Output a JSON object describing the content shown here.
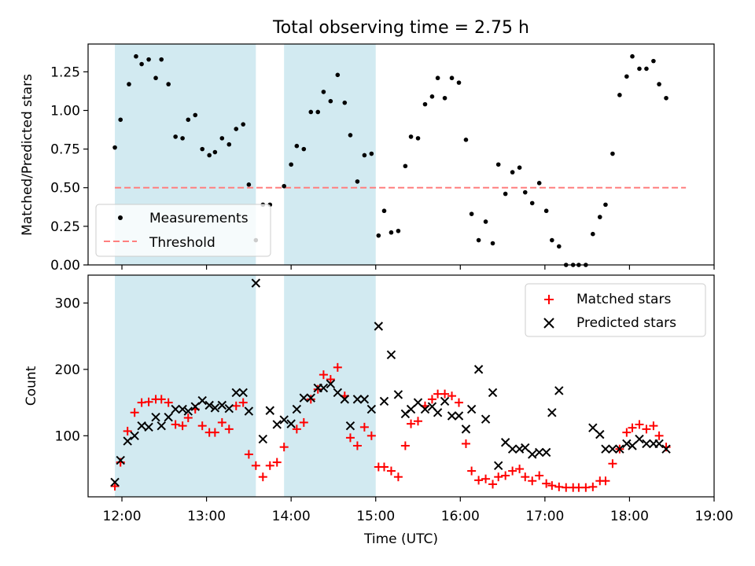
{
  "figure": {
    "title": "Total observing time = 2.75 h",
    "xlabel": "Time (UTC)",
    "x_ticks": [
      "12:00",
      "13:00",
      "14:00",
      "15:00",
      "16:00",
      "17:00",
      "18:00",
      "19:00"
    ]
  },
  "colors": {
    "shade": "#add8e6",
    "measurement": "#000000",
    "threshold": "#ff7f7f",
    "matched": "#ff0000",
    "predicted": "#000000"
  },
  "chart_data": [
    {
      "type": "scatter",
      "name": "ratio-panel",
      "ylabel": "Matched/Predicted stars",
      "xlim": [
        "11:36",
        "19:00"
      ],
      "ylim": [
        0,
        1.43
      ],
      "y_ticks": [
        "0.00",
        "0.25",
        "0.50",
        "0.75",
        "1.00",
        "1.25"
      ],
      "shaded_intervals": [
        [
          "11:55",
          "13:35"
        ],
        [
          "13:55",
          "15:00"
        ]
      ],
      "legend": {
        "placement": "lower-left",
        "entries": [
          "Measurements",
          "Threshold"
        ]
      },
      "threshold": {
        "name": "Threshold",
        "y": 0.5,
        "x_start": "11:55",
        "x_end": "18:40"
      },
      "series": [
        {
          "name": "Measurements",
          "points": [
            [
              "11:55",
              0.76
            ],
            [
              "11:59",
              0.94
            ],
            [
              "12:05",
              1.17
            ],
            [
              "12:10",
              1.35
            ],
            [
              "12:14",
              1.3
            ],
            [
              "12:19",
              1.33
            ],
            [
              "12:24",
              1.21
            ],
            [
              "12:28",
              1.33
            ],
            [
              "12:33",
              1.17
            ],
            [
              "12:38",
              0.83
            ],
            [
              "12:43",
              0.82
            ],
            [
              "12:47",
              0.94
            ],
            [
              "12:52",
              0.97
            ],
            [
              "12:57",
              0.75
            ],
            [
              "13:02",
              0.71
            ],
            [
              "13:06",
              0.73
            ],
            [
              "13:11",
              0.82
            ],
            [
              "13:16",
              0.78
            ],
            [
              "13:21",
              0.88
            ],
            [
              "13:26",
              0.91
            ],
            [
              "13:30",
              0.52
            ],
            [
              "13:35",
              0.16
            ],
            [
              "13:40",
              0.39
            ],
            [
              "13:45",
              0.39
            ],
            [
              "13:55",
              0.51
            ],
            [
              "14:00",
              0.65
            ],
            [
              "14:04",
              0.77
            ],
            [
              "14:09",
              0.75
            ],
            [
              "14:14",
              0.99
            ],
            [
              "14:19",
              0.99
            ],
            [
              "14:23",
              1.12
            ],
            [
              "14:28",
              1.06
            ],
            [
              "14:33",
              1.23
            ],
            [
              "14:38",
              1.05
            ],
            [
              "14:42",
              0.84
            ],
            [
              "14:47",
              0.54
            ],
            [
              "14:52",
              0.71
            ],
            [
              "14:57",
              0.72
            ],
            [
              "15:02",
              0.19
            ],
            [
              "15:06",
              0.35
            ],
            [
              "15:11",
              0.21
            ],
            [
              "15:16",
              0.22
            ],
            [
              "15:21",
              0.64
            ],
            [
              "15:25",
              0.83
            ],
            [
              "15:30",
              0.82
            ],
            [
              "15:35",
              1.04
            ],
            [
              "15:40",
              1.09
            ],
            [
              "15:44",
              1.21
            ],
            [
              "15:49",
              1.08
            ],
            [
              "15:54",
              1.21
            ],
            [
              "15:59",
              1.18
            ],
            [
              "16:04",
              0.81
            ],
            [
              "16:08",
              0.33
            ],
            [
              "16:13",
              0.16
            ],
            [
              "16:18",
              0.28
            ],
            [
              "16:23",
              0.14
            ],
            [
              "16:27",
              0.65
            ],
            [
              "16:32",
              0.46
            ],
            [
              "16:37",
              0.6
            ],
            [
              "16:42",
              0.63
            ],
            [
              "16:46",
              0.47
            ],
            [
              "16:51",
              0.4
            ],
            [
              "16:56",
              0.53
            ],
            [
              "17:01",
              0.35
            ],
            [
              "17:05",
              0.16
            ],
            [
              "17:10",
              0.12
            ],
            [
              "17:15",
              0.0
            ],
            [
              "17:20",
              0.0
            ],
            [
              "17:24",
              0.0
            ],
            [
              "17:29",
              0.0
            ],
            [
              "17:34",
              0.2
            ],
            [
              "17:39",
              0.31
            ],
            [
              "17:43",
              0.39
            ],
            [
              "17:48",
              0.72
            ],
            [
              "17:53",
              1.1
            ],
            [
              "17:58",
              1.22
            ],
            [
              "18:02",
              1.35
            ],
            [
              "18:07",
              1.27
            ],
            [
              "18:12",
              1.27
            ],
            [
              "18:17",
              1.32
            ],
            [
              "18:21",
              1.17
            ],
            [
              "18:26",
              1.08
            ]
          ]
        }
      ]
    },
    {
      "type": "scatter",
      "name": "count-panel",
      "ylabel": "Count",
      "xlim": [
        "11:36",
        "19:00"
      ],
      "ylim": [
        8,
        342
      ],
      "y_ticks": [
        "100",
        "200",
        "300"
      ],
      "shaded_intervals": [
        [
          "11:55",
          "13:35"
        ],
        [
          "13:55",
          "15:00"
        ]
      ],
      "legend": {
        "placement": "top-right",
        "entries": [
          "Matched stars",
          "Predicted stars"
        ]
      },
      "series": [
        {
          "name": "Matched stars",
          "marker": "+",
          "points": [
            [
              "11:55",
              24
            ],
            [
              "11:59",
              60
            ],
            [
              "12:04",
              107
            ],
            [
              "12:09",
              135
            ],
            [
              "12:14",
              150
            ],
            [
              "12:19",
              151
            ],
            [
              "12:24",
              155
            ],
            [
              "12:28",
              155
            ],
            [
              "12:33",
              150
            ],
            [
              "12:38",
              117
            ],
            [
              "12:43",
              115
            ],
            [
              "12:47",
              127
            ],
            [
              "12:52",
              140
            ],
            [
              "12:57",
              115
            ],
            [
              "13:02",
              105
            ],
            [
              "13:06",
              105
            ],
            [
              "13:11",
              120
            ],
            [
              "13:16",
              110
            ],
            [
              "13:21",
              145
            ],
            [
              "13:26",
              150
            ],
            [
              "13:30",
              72
            ],
            [
              "13:35",
              55
            ],
            [
              "13:40",
              38
            ],
            [
              "13:45",
              55
            ],
            [
              "13:50",
              60
            ],
            [
              "13:55",
              83
            ],
            [
              "14:04",
              110
            ],
            [
              "14:09",
              120
            ],
            [
              "14:14",
              155
            ],
            [
              "14:19",
              170
            ],
            [
              "14:23",
              192
            ],
            [
              "14:28",
              185
            ],
            [
              "14:33",
              203
            ],
            [
              "14:38",
              160
            ],
            [
              "14:42",
              97
            ],
            [
              "14:47",
              85
            ],
            [
              "14:52",
              113
            ],
            [
              "14:57",
              100
            ],
            [
              "15:02",
              53
            ],
            [
              "15:06",
              53
            ],
            [
              "15:11",
              47
            ],
            [
              "15:16",
              38
            ],
            [
              "15:21",
              85
            ],
            [
              "15:25",
              118
            ],
            [
              "15:30",
              122
            ],
            [
              "15:35",
              145
            ],
            [
              "15:40",
              155
            ],
            [
              "15:44",
              163
            ],
            [
              "15:49",
              163
            ],
            [
              "15:54",
              160
            ],
            [
              "15:59",
              150
            ],
            [
              "16:04",
              88
            ],
            [
              "16:08",
              47
            ],
            [
              "16:13",
              33
            ],
            [
              "16:18",
              35
            ],
            [
              "16:23",
              27
            ],
            [
              "16:27",
              38
            ],
            [
              "16:32",
              40
            ],
            [
              "16:37",
              47
            ],
            [
              "16:42",
              50
            ],
            [
              "16:46",
              38
            ],
            [
              "16:51",
              32
            ],
            [
              "16:56",
              40
            ],
            [
              "17:01",
              28
            ],
            [
              "17:05",
              25
            ],
            [
              "17:10",
              23
            ],
            [
              "17:15",
              22
            ],
            [
              "17:20",
              22
            ],
            [
              "17:24",
              22
            ],
            [
              "17:29",
              22
            ],
            [
              "17:34",
              23
            ],
            [
              "17:39",
              32
            ],
            [
              "17:43",
              32
            ],
            [
              "17:48",
              58
            ],
            [
              "17:53",
              80
            ],
            [
              "17:58",
              105
            ],
            [
              "18:02",
              112
            ],
            [
              "18:07",
              117
            ],
            [
              "18:12",
              110
            ],
            [
              "18:17",
              115
            ],
            [
              "18:21",
              100
            ],
            [
              "18:26",
              83
            ]
          ]
        },
        {
          "name": "Predicted stars",
          "marker": "x",
          "points": [
            [
              "11:55",
              30
            ],
            [
              "11:59",
              63
            ],
            [
              "12:04",
              92
            ],
            [
              "12:09",
              100
            ],
            [
              "12:14",
              115
            ],
            [
              "12:19",
              113
            ],
            [
              "12:24",
              128
            ],
            [
              "12:28",
              115
            ],
            [
              "12:33",
              128
            ],
            [
              "12:38",
              140
            ],
            [
              "12:43",
              140
            ],
            [
              "12:47",
              137
            ],
            [
              "12:52",
              144
            ],
            [
              "12:57",
              153
            ],
            [
              "13:02",
              146
            ],
            [
              "13:06",
              142
            ],
            [
              "13:11",
              146
            ],
            [
              "13:16",
              141
            ],
            [
              "13:21",
              165
            ],
            [
              "13:26",
              165
            ],
            [
              "13:30",
              137
            ],
            [
              "13:35",
              330
            ],
            [
              "13:40",
              95
            ],
            [
              "13:45",
              138
            ],
            [
              "13:50",
              117
            ],
            [
              "13:55",
              124
            ],
            [
              "14:00",
              118
            ],
            [
              "14:04",
              140
            ],
            [
              "14:09",
              157
            ],
            [
              "14:14",
              157
            ],
            [
              "14:19",
              172
            ],
            [
              "14:23",
              172
            ],
            [
              "14:28",
              178
            ],
            [
              "14:33",
              165
            ],
            [
              "14:38",
              155
            ],
            [
              "14:42",
              115
            ],
            [
              "14:47",
              155
            ],
            [
              "14:52",
              155
            ],
            [
              "14:57",
              140
            ],
            [
              "15:02",
              265
            ],
            [
              "15:06",
              152
            ],
            [
              "15:11",
              222
            ],
            [
              "15:16",
              162
            ],
            [
              "15:21",
              133
            ],
            [
              "15:25",
              140
            ],
            [
              "15:30",
              150
            ],
            [
              "15:35",
              140
            ],
            [
              "15:40",
              144
            ],
            [
              "15:44",
              135
            ],
            [
              "15:49",
              152
            ],
            [
              "15:54",
              130
            ],
            [
              "15:59",
              130
            ],
            [
              "16:04",
              110
            ],
            [
              "16:08",
              140
            ],
            [
              "16:13",
              200
            ],
            [
              "16:18",
              125
            ],
            [
              "16:23",
              165
            ],
            [
              "16:27",
              55
            ],
            [
              "16:32",
              90
            ],
            [
              "16:37",
              80
            ],
            [
              "16:42",
              80
            ],
            [
              "16:46",
              82
            ],
            [
              "16:51",
              72
            ],
            [
              "16:56",
              75
            ],
            [
              "17:01",
              75
            ],
            [
              "17:05",
              135
            ],
            [
              "17:10",
              168
            ],
            [
              "17:34",
              112
            ],
            [
              "17:39",
              102
            ],
            [
              "17:43",
              80
            ],
            [
              "17:48",
              80
            ],
            [
              "17:53",
              80
            ],
            [
              "17:58",
              88
            ],
            [
              "18:02",
              85
            ],
            [
              "18:07",
              95
            ],
            [
              "18:12",
              88
            ],
            [
              "18:17",
              88
            ],
            [
              "18:21",
              88
            ],
            [
              "18:26",
              80
            ]
          ]
        }
      ]
    }
  ]
}
